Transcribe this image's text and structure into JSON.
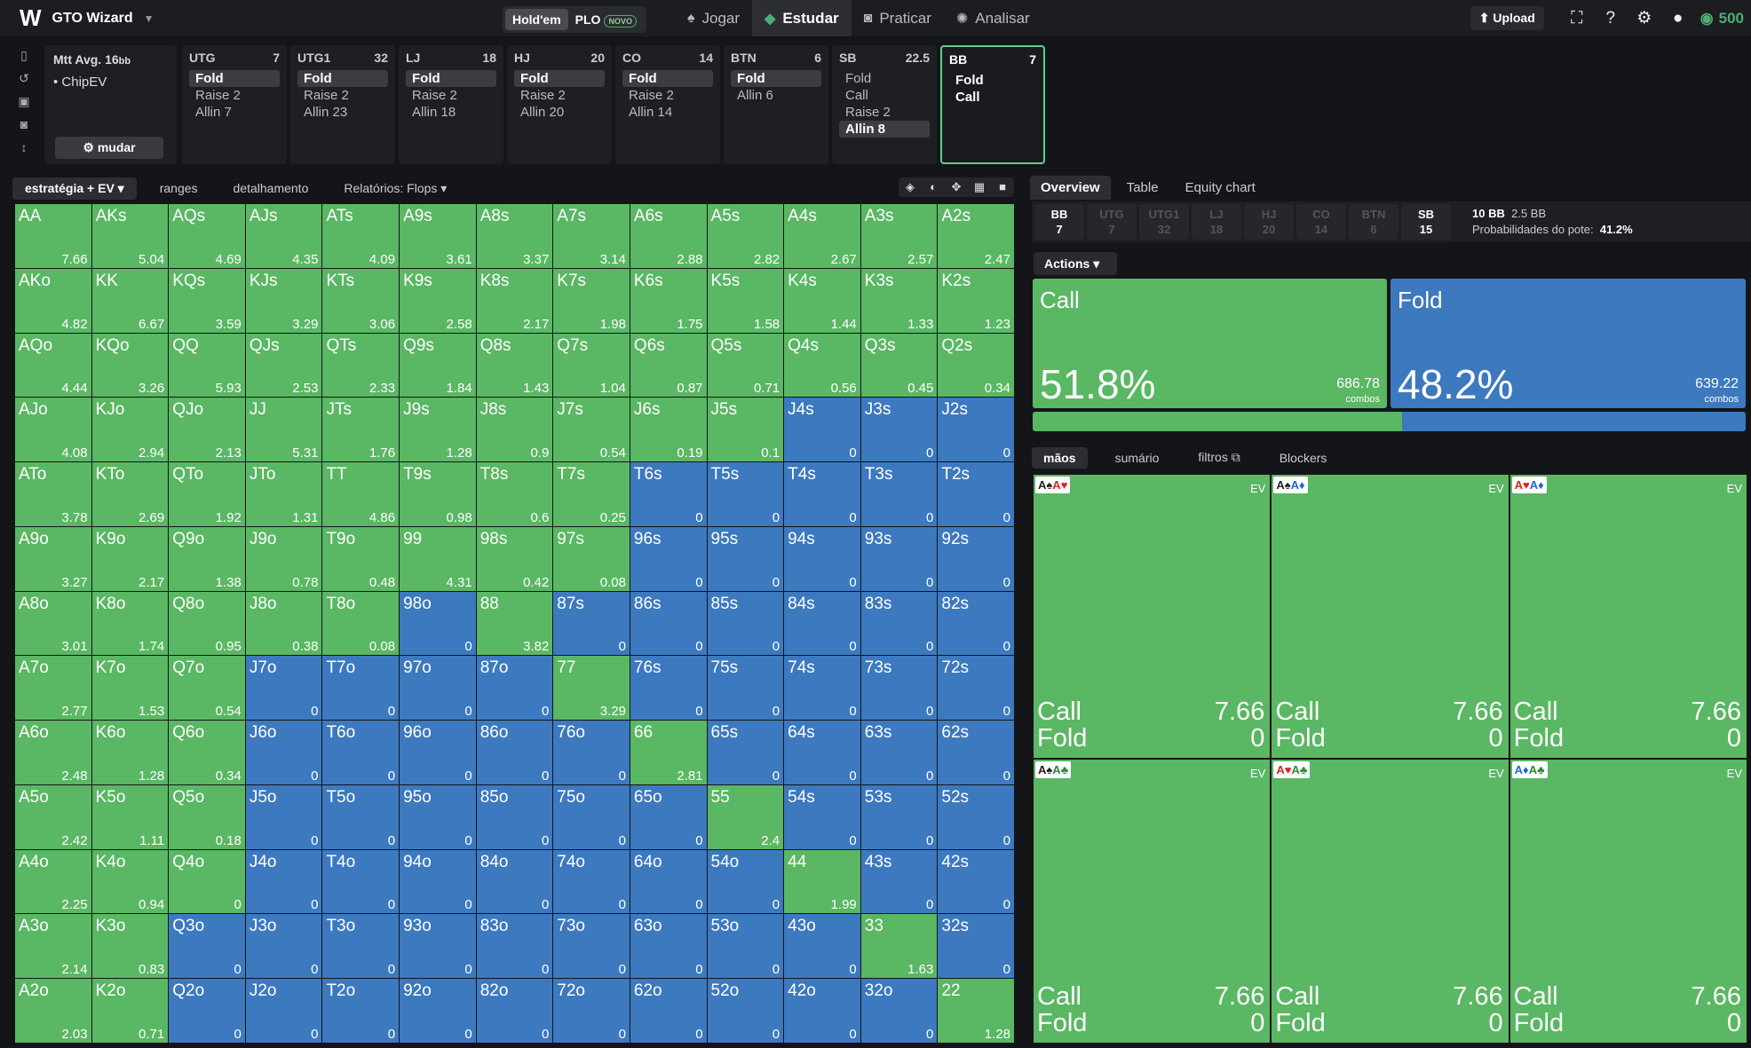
{
  "app": {
    "logo": "W",
    "name": "GTO Wizard"
  },
  "gametypes": [
    {
      "label": "Hold'em"
    },
    {
      "label": "PLO",
      "badge": "NOVO"
    }
  ],
  "nav": [
    {
      "label": "Jogar",
      "icon": "spade-icon"
    },
    {
      "label": "Estudar",
      "icon": "graduation-cap-icon"
    },
    {
      "label": "Praticar",
      "icon": "gamepad-icon"
    },
    {
      "label": "Analisar",
      "icon": "lightbulb-icon"
    }
  ],
  "topright": {
    "upload": "Upload",
    "coins": "500"
  },
  "info": {
    "title": "Mtt Avg. 16",
    "unit": "bb",
    "model": "• ChipEV",
    "change": "mudar"
  },
  "positions": [
    {
      "name": "UTG",
      "stack": "7",
      "actions": [
        {
          "label": "Fold",
          "selected": true
        },
        {
          "label": "Raise 2"
        },
        {
          "label": "Allin 7"
        }
      ]
    },
    {
      "name": "UTG1",
      "stack": "32",
      "actions": [
        {
          "label": "Fold",
          "selected": true
        },
        {
          "label": "Raise 2"
        },
        {
          "label": "Allin 23"
        }
      ]
    },
    {
      "name": "LJ",
      "stack": "18",
      "actions": [
        {
          "label": "Fold",
          "selected": true
        },
        {
          "label": "Raise 2"
        },
        {
          "label": "Allin 18"
        }
      ]
    },
    {
      "name": "HJ",
      "stack": "20",
      "actions": [
        {
          "label": "Fold",
          "selected": true
        },
        {
          "label": "Raise 2"
        },
        {
          "label": "Allin 20"
        }
      ]
    },
    {
      "name": "CO",
      "stack": "14",
      "actions": [
        {
          "label": "Fold",
          "selected": true
        },
        {
          "label": "Raise 2"
        },
        {
          "label": "Allin 14"
        }
      ]
    },
    {
      "name": "BTN",
      "stack": "6",
      "actions": [
        {
          "label": "Fold",
          "selected": true
        },
        {
          "label": "Allin 6"
        }
      ]
    },
    {
      "name": "SB",
      "stack": "22.5",
      "actions": [
        {
          "label": "Fold"
        },
        {
          "label": "Call"
        },
        {
          "label": "Raise 2"
        },
        {
          "label": "Allin 8",
          "selected": true
        }
      ]
    },
    {
      "name": "BB",
      "stack": "7",
      "active": true,
      "actions": [
        {
          "label": "Fold"
        },
        {
          "label": "Call"
        }
      ]
    }
  ],
  "subtabs": [
    "estratégia + EV",
    "ranges",
    "detalhamento",
    "Relatórios: Flops"
  ],
  "rightTabs": [
    "Overview",
    "Table",
    "Equity chart"
  ],
  "rpos": [
    {
      "n": "BB",
      "s": "7",
      "lit": true
    },
    {
      "n": "UTG",
      "s": "7"
    },
    {
      "n": "UTG1",
      "s": "32"
    },
    {
      "n": "LJ",
      "s": "18"
    },
    {
      "n": "HJ",
      "s": "20"
    },
    {
      "n": "CO",
      "s": "14"
    },
    {
      "n": "BTN",
      "s": "6"
    },
    {
      "n": "SB",
      "s": "15",
      "lit": true
    }
  ],
  "pot": {
    "bb": "10 BB",
    "bb2": "2.5 BB",
    "label": "Probabilidades do pote:",
    "value": "41.2%"
  },
  "actionsMenu": "Actions",
  "actionSummary": [
    {
      "name": "Call",
      "pct": "51.8%",
      "fraction": 0.518,
      "combos": "686.78",
      "combosLabel": "combos",
      "color": "#5ab763"
    },
    {
      "name": "Fold",
      "pct": "48.2%",
      "fraction": 0.482,
      "combos": "639.22",
      "combosLabel": "combos",
      "color": "#3d79bf"
    }
  ],
  "lowerTabs": [
    "mãos",
    "sumário",
    "filtros",
    "Blockers"
  ],
  "colors": {
    "call": "#5ab763",
    "fold": "#3d79bf",
    "accent": "#4caf70"
  },
  "grid": [
    [
      [
        "AA",
        "7.66",
        "g"
      ],
      [
        "AKs",
        "5.04",
        "g"
      ],
      [
        "AQs",
        "4.69",
        "g"
      ],
      [
        "AJs",
        "4.35",
        "g"
      ],
      [
        "ATs",
        "4.09",
        "g"
      ],
      [
        "A9s",
        "3.61",
        "g"
      ],
      [
        "A8s",
        "3.37",
        "g"
      ],
      [
        "A7s",
        "3.14",
        "g"
      ],
      [
        "A6s",
        "2.88",
        "g"
      ],
      [
        "A5s",
        "2.82",
        "g"
      ],
      [
        "A4s",
        "2.67",
        "g"
      ],
      [
        "A3s",
        "2.57",
        "g"
      ],
      [
        "A2s",
        "2.47",
        "g"
      ]
    ],
    [
      [
        "AKo",
        "4.82",
        "g"
      ],
      [
        "KK",
        "6.67",
        "g"
      ],
      [
        "KQs",
        "3.59",
        "g"
      ],
      [
        "KJs",
        "3.29",
        "g"
      ],
      [
        "KTs",
        "3.06",
        "g"
      ],
      [
        "K9s",
        "2.58",
        "g"
      ],
      [
        "K8s",
        "2.17",
        "g"
      ],
      [
        "K7s",
        "1.98",
        "g"
      ],
      [
        "K6s",
        "1.75",
        "g"
      ],
      [
        "K5s",
        "1.58",
        "g"
      ],
      [
        "K4s",
        "1.44",
        "g"
      ],
      [
        "K3s",
        "1.33",
        "g"
      ],
      [
        "K2s",
        "1.23",
        "g"
      ]
    ],
    [
      [
        "AQo",
        "4.44",
        "g"
      ],
      [
        "KQo",
        "3.26",
        "g"
      ],
      [
        "QQ",
        "5.93",
        "g"
      ],
      [
        "QJs",
        "2.53",
        "g"
      ],
      [
        "QTs",
        "2.33",
        "g"
      ],
      [
        "Q9s",
        "1.84",
        "g"
      ],
      [
        "Q8s",
        "1.43",
        "g"
      ],
      [
        "Q7s",
        "1.04",
        "g"
      ],
      [
        "Q6s",
        "0.87",
        "g"
      ],
      [
        "Q5s",
        "0.71",
        "g"
      ],
      [
        "Q4s",
        "0.56",
        "g"
      ],
      [
        "Q3s",
        "0.45",
        "g"
      ],
      [
        "Q2s",
        "0.34",
        "g"
      ]
    ],
    [
      [
        "AJo",
        "4.08",
        "g"
      ],
      [
        "KJo",
        "2.94",
        "g"
      ],
      [
        "QJo",
        "2.13",
        "g"
      ],
      [
        "JJ",
        "5.31",
        "g"
      ],
      [
        "JTs",
        "1.76",
        "g"
      ],
      [
        "J9s",
        "1.28",
        "g"
      ],
      [
        "J8s",
        "0.9",
        "g"
      ],
      [
        "J7s",
        "0.54",
        "g"
      ],
      [
        "J6s",
        "0.19",
        "g"
      ],
      [
        "J5s",
        "0.1",
        "g"
      ],
      [
        "J4s",
        "0",
        "b"
      ],
      [
        "J3s",
        "0",
        "b"
      ],
      [
        "J2s",
        "0",
        "b"
      ]
    ],
    [
      [
        "ATo",
        "3.78",
        "g"
      ],
      [
        "KTo",
        "2.69",
        "g"
      ],
      [
        "QTo",
        "1.92",
        "g"
      ],
      [
        "JTo",
        "1.31",
        "g"
      ],
      [
        "TT",
        "4.86",
        "g"
      ],
      [
        "T9s",
        "0.98",
        "g"
      ],
      [
        "T8s",
        "0.6",
        "g"
      ],
      [
        "T7s",
        "0.25",
        "g"
      ],
      [
        "T6s",
        "0",
        "b"
      ],
      [
        "T5s",
        "0",
        "b"
      ],
      [
        "T4s",
        "0",
        "b"
      ],
      [
        "T3s",
        "0",
        "b"
      ],
      [
        "T2s",
        "0",
        "b"
      ]
    ],
    [
      [
        "A9o",
        "3.27",
        "g"
      ],
      [
        "K9o",
        "2.17",
        "g"
      ],
      [
        "Q9o",
        "1.38",
        "g"
      ],
      [
        "J9o",
        "0.78",
        "g"
      ],
      [
        "T9o",
        "0.48",
        "g"
      ],
      [
        "99",
        "4.31",
        "g"
      ],
      [
        "98s",
        "0.42",
        "g"
      ],
      [
        "97s",
        "0.08",
        "g"
      ],
      [
        "96s",
        "0",
        "b"
      ],
      [
        "95s",
        "0",
        "b"
      ],
      [
        "94s",
        "0",
        "b"
      ],
      [
        "93s",
        "0",
        "b"
      ],
      [
        "92s",
        "0",
        "b"
      ]
    ],
    [
      [
        "A8o",
        "3.01",
        "g"
      ],
      [
        "K8o",
        "1.74",
        "g"
      ],
      [
        "Q8o",
        "0.95",
        "g"
      ],
      [
        "J8o",
        "0.38",
        "g"
      ],
      [
        "T8o",
        "0.08",
        "g"
      ],
      [
        "98o",
        "0",
        "b"
      ],
      [
        "88",
        "3.82",
        "g"
      ],
      [
        "87s",
        "0",
        "b"
      ],
      [
        "86s",
        "0",
        "b"
      ],
      [
        "85s",
        "0",
        "b"
      ],
      [
        "84s",
        "0",
        "b"
      ],
      [
        "83s",
        "0",
        "b"
      ],
      [
        "82s",
        "0",
        "b"
      ]
    ],
    [
      [
        "A7o",
        "2.77",
        "g"
      ],
      [
        "K7o",
        "1.53",
        "g"
      ],
      [
        "Q7o",
        "0.54",
        "g"
      ],
      [
        "J7o",
        "0",
        "b"
      ],
      [
        "T7o",
        "0",
        "b"
      ],
      [
        "97o",
        "0",
        "b"
      ],
      [
        "87o",
        "0",
        "b"
      ],
      [
        "77",
        "3.29",
        "g"
      ],
      [
        "76s",
        "0",
        "b"
      ],
      [
        "75s",
        "0",
        "b"
      ],
      [
        "74s",
        "0",
        "b"
      ],
      [
        "73s",
        "0",
        "b"
      ],
      [
        "72s",
        "0",
        "b"
      ]
    ],
    [
      [
        "A6o",
        "2.48",
        "g"
      ],
      [
        "K6o",
        "1.28",
        "g"
      ],
      [
        "Q6o",
        "0.34",
        "g"
      ],
      [
        "J6o",
        "0",
        "b"
      ],
      [
        "T6o",
        "0",
        "b"
      ],
      [
        "96o",
        "0",
        "b"
      ],
      [
        "86o",
        "0",
        "b"
      ],
      [
        "76o",
        "0",
        "b"
      ],
      [
        "66",
        "2.81",
        "g"
      ],
      [
        "65s",
        "0",
        "b"
      ],
      [
        "64s",
        "0",
        "b"
      ],
      [
        "63s",
        "0",
        "b"
      ],
      [
        "62s",
        "0",
        "b"
      ]
    ],
    [
      [
        "A5o",
        "2.42",
        "g"
      ],
      [
        "K5o",
        "1.11",
        "g"
      ],
      [
        "Q5o",
        "0.18",
        "g"
      ],
      [
        "J5o",
        "0",
        "b"
      ],
      [
        "T5o",
        "0",
        "b"
      ],
      [
        "95o",
        "0",
        "b"
      ],
      [
        "85o",
        "0",
        "b"
      ],
      [
        "75o",
        "0",
        "b"
      ],
      [
        "65o",
        "0",
        "b"
      ],
      [
        "55",
        "2.4",
        "g"
      ],
      [
        "54s",
        "0",
        "b"
      ],
      [
        "53s",
        "0",
        "b"
      ],
      [
        "52s",
        "0",
        "b"
      ]
    ],
    [
      [
        "A4o",
        "2.25",
        "g"
      ],
      [
        "K4o",
        "0.94",
        "g"
      ],
      [
        "Q4o",
        "0",
        "g"
      ],
      [
        "J4o",
        "0",
        "b"
      ],
      [
        "T4o",
        "0",
        "b"
      ],
      [
        "94o",
        "0",
        "b"
      ],
      [
        "84o",
        "0",
        "b"
      ],
      [
        "74o",
        "0",
        "b"
      ],
      [
        "64o",
        "0",
        "b"
      ],
      [
        "54o",
        "0",
        "b"
      ],
      [
        "44",
        "1.99",
        "g"
      ],
      [
        "43s",
        "0",
        "b"
      ],
      [
        "42s",
        "0",
        "b"
      ]
    ],
    [
      [
        "A3o",
        "2.14",
        "g"
      ],
      [
        "K3o",
        "0.83",
        "g"
      ],
      [
        "Q3o",
        "0",
        "b"
      ],
      [
        "J3o",
        "0",
        "b"
      ],
      [
        "T3o",
        "0",
        "b"
      ],
      [
        "93o",
        "0",
        "b"
      ],
      [
        "83o",
        "0",
        "b"
      ],
      [
        "73o",
        "0",
        "b"
      ],
      [
        "63o",
        "0",
        "b"
      ],
      [
        "53o",
        "0",
        "b"
      ],
      [
        "43o",
        "0",
        "b"
      ],
      [
        "33",
        "1.63",
        "g"
      ],
      [
        "32s",
        "0",
        "b"
      ]
    ],
    [
      [
        "A2o",
        "2.03",
        "g"
      ],
      [
        "K2o",
        "0.71",
        "g"
      ],
      [
        "Q2o",
        "0",
        "b"
      ],
      [
        "J2o",
        "0",
        "b"
      ],
      [
        "T2o",
        "0",
        "b"
      ],
      [
        "92o",
        "0",
        "b"
      ],
      [
        "82o",
        "0",
        "b"
      ],
      [
        "72o",
        "0",
        "b"
      ],
      [
        "62o",
        "0",
        "b"
      ],
      [
        "52o",
        "0",
        "b"
      ],
      [
        "42o",
        "0",
        "b"
      ],
      [
        "32o",
        "0",
        "b"
      ],
      [
        "22",
        "1.28",
        "g"
      ]
    ]
  ],
  "combos": [
    {
      "cards": [
        [
          "A",
          "♠",
          "#222"
        ],
        [
          "A",
          "♥",
          "#d22"
        ]
      ],
      "ev": "EV",
      "call": "7.66",
      "fold": "0"
    },
    {
      "cards": [
        [
          "A",
          "♠",
          "#222"
        ],
        [
          "A",
          "♦",
          "#2266cc"
        ]
      ],
      "ev": "EV",
      "call": "7.66",
      "fold": "0"
    },
    {
      "cards": [
        [
          "A",
          "♥",
          "#d22"
        ],
        [
          "A",
          "♦",
          "#2266cc"
        ]
      ],
      "ev": "EV",
      "call": "7.66",
      "fold": "0"
    },
    {
      "cards": [
        [
          "A",
          "♠",
          "#222"
        ],
        [
          "A",
          "♣",
          "#2a8a3a"
        ]
      ],
      "ev": "EV",
      "call": "7.66",
      "fold": "0"
    },
    {
      "cards": [
        [
          "A",
          "♥",
          "#d22"
        ],
        [
          "A",
          "♣",
          "#2a8a3a"
        ]
      ],
      "ev": "EV",
      "call": "7.66",
      "fold": "0"
    },
    {
      "cards": [
        [
          "A",
          "♦",
          "#2266cc"
        ],
        [
          "A",
          "♣",
          "#2a8a3a"
        ]
      ],
      "ev": "EV",
      "call": "7.66",
      "fold": "0"
    }
  ],
  "comboActionLabels": {
    "call": "Call",
    "fold": "Fold"
  }
}
